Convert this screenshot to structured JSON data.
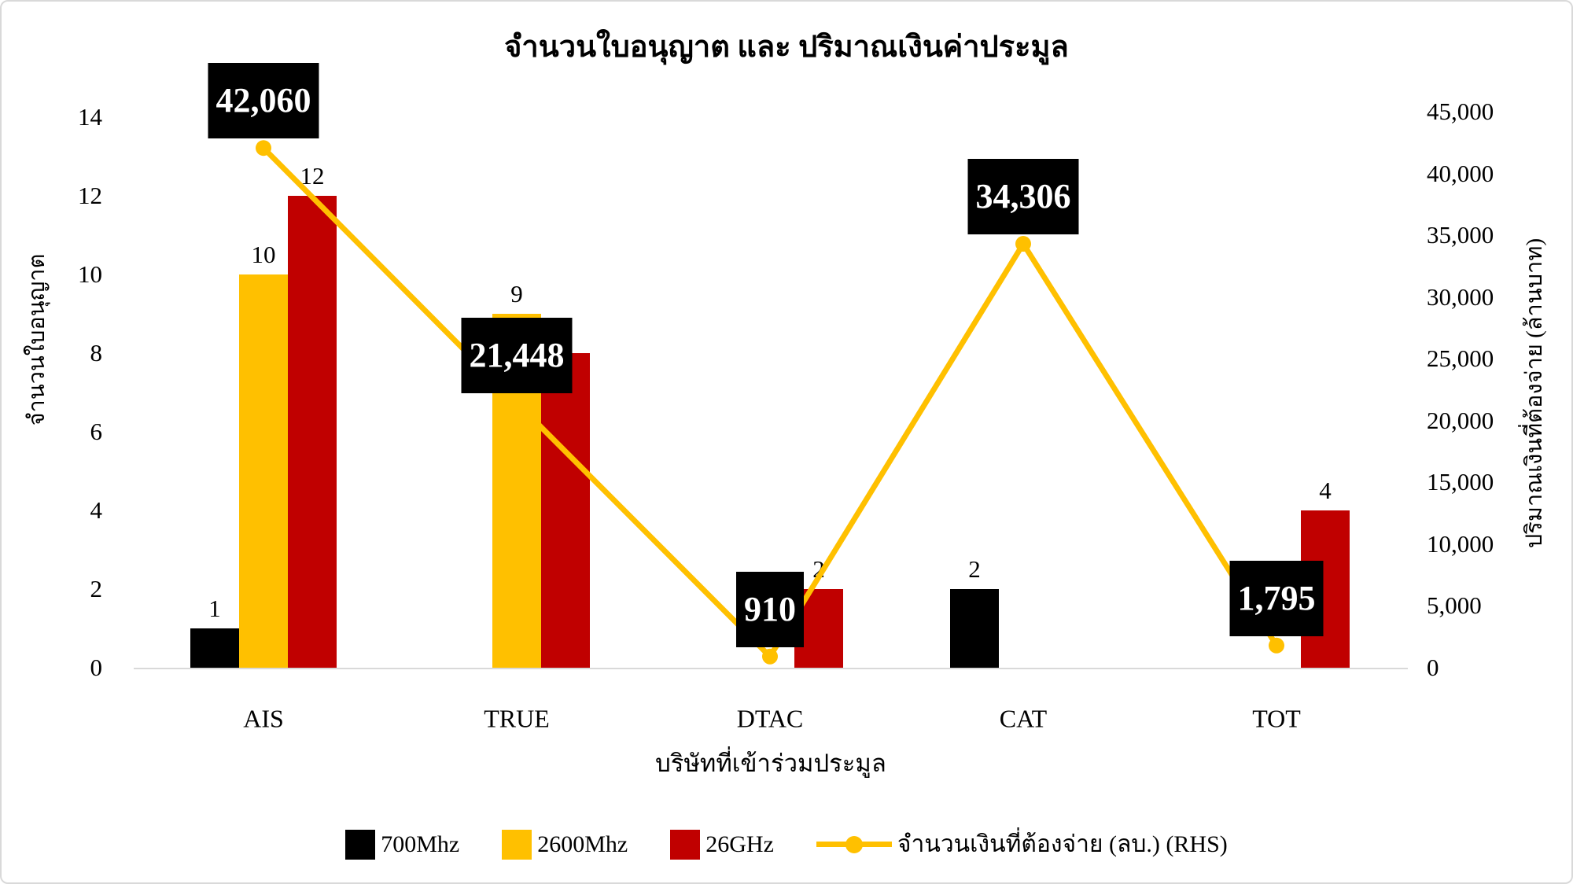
{
  "chart_data": {
    "type": "bar",
    "subtype": "combo-bar-line-dual-axis",
    "title": "จำนวนใบอนุญาต และ ปริมาณเงินค่าประมูล",
    "categories": [
      "AIS",
      "TRUE",
      "DTAC",
      "CAT",
      "TOT"
    ],
    "series": [
      {
        "name": "700Mhz",
        "type": "bar",
        "color": "#000000",
        "values": [
          1,
          0,
          0,
          2,
          0
        ]
      },
      {
        "name": "2600Mhz",
        "type": "bar",
        "color": "#FFC000",
        "values": [
          10,
          9,
          0,
          0,
          0
        ]
      },
      {
        "name": "26GHz",
        "type": "bar",
        "color": "#C00000",
        "values": [
          12,
          8,
          2,
          0,
          4
        ]
      },
      {
        "name": "จำนวนเงินที่ต้องจ่าย (ลบ.) (RHS)",
        "type": "line",
        "color": "#FFC000",
        "values": [
          42060,
          21448,
          910,
          34306,
          1795
        ],
        "labels": [
          "42,060",
          "21,448",
          "910",
          "34,306",
          "1,795"
        ]
      }
    ],
    "xlabel": "บริษัทที่เข้าร่วมประมูล",
    "ylabel_left": "จำนวนใบอนุญาต",
    "ylabel_right": "ปริมาณเงินที่ต้องจ่าย (ล้านบาท)",
    "y_left": {
      "min": 0,
      "max": 14,
      "ticks": [
        "0",
        "2",
        "4",
        "6",
        "8",
        "10",
        "12",
        "14"
      ]
    },
    "y_right": {
      "min": 0,
      "max": 45000,
      "ticks": [
        "0",
        "5,000",
        "10,000",
        "15,000",
        "20,000",
        "25,000",
        "30,000",
        "35,000",
        "40,000",
        "45,000"
      ]
    },
    "grid": false,
    "legend_position": "bottom",
    "colors": {
      "bar_black": "#000000",
      "bar_yellow": "#FFC000",
      "bar_red": "#C00000",
      "line": "#FFC000",
      "axis_line": "#d9d9d9",
      "callout_bg": "#000000",
      "callout_text": "#ffffff"
    }
  }
}
